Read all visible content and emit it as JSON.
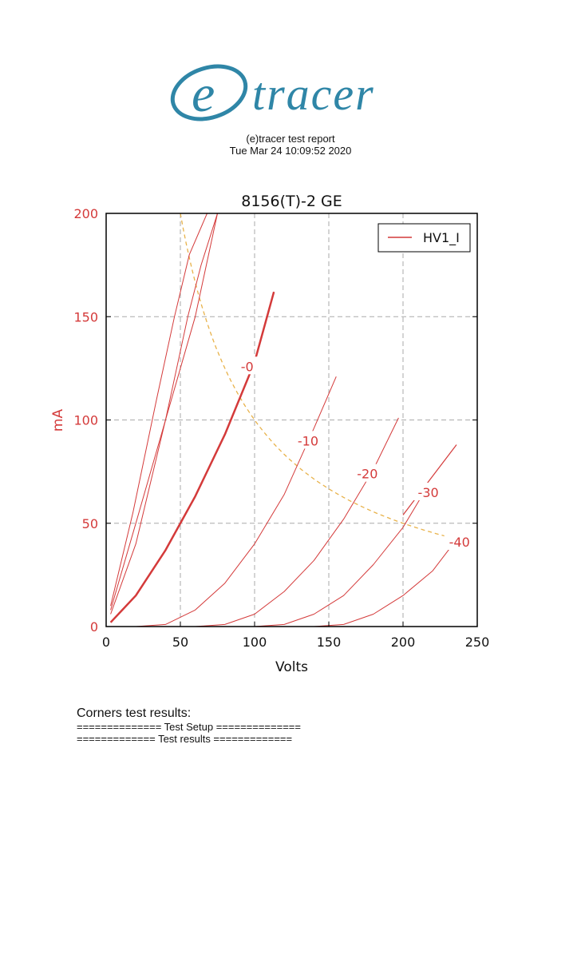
{
  "logo": {
    "text": "etracer",
    "color": "#2f86a7"
  },
  "report": {
    "title": "(e)tracer test report",
    "date": "Tue Mar 24 10:09:52 2020"
  },
  "chart_data": {
    "type": "line",
    "title": "8156(T)-2 GE",
    "xlabel": "Volts",
    "ylabel": "mA",
    "xlim": [
      0,
      250
    ],
    "ylim": [
      0,
      200
    ],
    "xticks": [
      0,
      50,
      100,
      150,
      200,
      250
    ],
    "yticks": [
      0,
      50,
      100,
      150,
      200
    ],
    "grid": true,
    "legend": {
      "position": "top-right",
      "entries": [
        "HV1_I"
      ]
    },
    "colors": {
      "curve": "#d43a3a",
      "axis_text": "#d43a3a",
      "power_limit": "#e8b24a",
      "grid": "#aaaaaa"
    },
    "series": [
      {
        "x": [
          3,
          18,
          34,
          46,
          56,
          68
        ],
        "values": [
          10,
          55,
          110,
          150,
          180,
          200
        ],
        "width": 1
      },
      {
        "x": [
          3,
          20,
          40,
          55,
          64,
          75
        ],
        "values": [
          8,
          50,
          100,
          150,
          175,
          200
        ],
        "width": 1
      },
      {
        "x": [
          3,
          20,
          40,
          60,
          75
        ],
        "values": [
          6,
          40,
          100,
          150,
          200
        ],
        "width": 1
      },
      {
        "x": [
          3,
          20,
          40,
          60,
          80,
          100,
          113
        ],
        "values": [
          2,
          15,
          37,
          63,
          93,
          128,
          162
        ],
        "width": 2.5
      },
      {
        "x": [
          20,
          40,
          60,
          80,
          100,
          120,
          140,
          155
        ],
        "values": [
          0,
          1,
          8,
          21,
          40,
          64,
          96,
          121
        ],
        "width": 1
      },
      {
        "x": [
          60,
          80,
          100,
          120,
          140,
          160,
          180,
          197
        ],
        "values": [
          0,
          1,
          6,
          17,
          32,
          52,
          76,
          101
        ],
        "width": 1
      },
      {
        "x": [
          100,
          120,
          140,
          160,
          180,
          200,
          215
        ],
        "values": [
          0,
          1,
          6,
          15,
          30,
          48,
          66
        ],
        "width": 1
      },
      {
        "x": [
          140,
          160,
          180,
          200,
          220,
          237
        ],
        "values": [
          0,
          1,
          6,
          15,
          27,
          43
        ],
        "width": 1
      }
    ],
    "guide_extensions": [
      {
        "x": [
          200,
          236
        ],
        "values": [
          54,
          88
        ]
      }
    ],
    "power_curve": {
      "watts": 10,
      "x_range": [
        50,
        250
      ]
    },
    "annotations": [
      {
        "text": "-0",
        "x": 95,
        "y": 126
      },
      {
        "text": "-10",
        "x": 136,
        "y": 90
      },
      {
        "text": "-20",
        "x": 176,
        "y": 74
      },
      {
        "text": "-30",
        "x": 217,
        "y": 65
      },
      {
        "text": "-40",
        "x": 238,
        "y": 41
      }
    ]
  },
  "results": {
    "heading": "Corners test results:",
    "setup_line": "============== Test Setup ==============",
    "results_line": "============= Test results ============="
  }
}
